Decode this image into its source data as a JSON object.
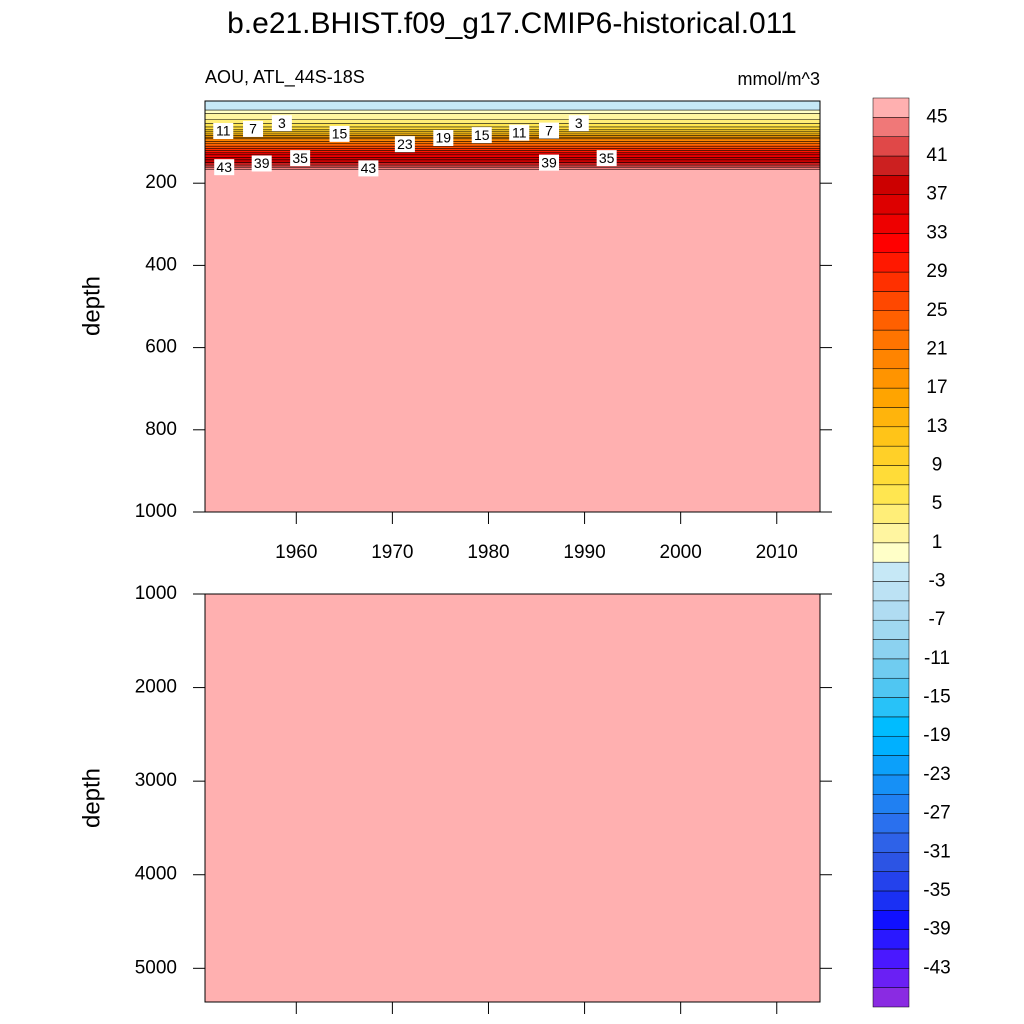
{
  "title": "b.e21.BHIST.f09_g17.CMIP6-historical.011",
  "chart_data": [
    {
      "type": "contour",
      "left_label": "AOU, ATL_44S-18S",
      "right_label": "mmol/m^3",
      "ylabel": "depth",
      "xlim": [
        1950.5,
        2014.5
      ],
      "xticks": [
        1960,
        1970,
        1980,
        1990,
        2000,
        2010
      ],
      "ylim": [
        0,
        1000
      ],
      "yticks": [
        200,
        400,
        600,
        800,
        1000
      ],
      "level_depths": [
        null,
        null,
        null,
        null,
        null,
        null,
        null,
        null,
        null,
        null,
        null,
        null,
        null,
        null,
        null,
        null,
        null,
        null,
        null,
        null,
        null,
        null,
        22,
        30,
        45,
        55,
        63,
        70,
        75,
        80,
        84,
        88,
        92,
        98,
        104,
        110,
        116,
        121,
        126,
        131,
        137,
        143,
        150,
        156,
        161,
        167
      ],
      "contour_labels": [
        {
          "text": 11,
          "year": 1952.4,
          "depth": 73
        },
        {
          "text": 7,
          "year": 1955.5,
          "depth": 68
        },
        {
          "text": 3,
          "year": 1958.5,
          "depth": 54
        },
        {
          "text": 15,
          "year": 1964.5,
          "depth": 80
        },
        {
          "text": 23,
          "year": 1971.3,
          "depth": 105
        },
        {
          "text": 19,
          "year": 1975.3,
          "depth": 90
        },
        {
          "text": 15,
          "year": 1979.3,
          "depth": 83
        },
        {
          "text": 11,
          "year": 1983.2,
          "depth": 77
        },
        {
          "text": 7,
          "year": 1986.3,
          "depth": 72
        },
        {
          "text": 3,
          "year": 1989.4,
          "depth": 54
        },
        {
          "text": 43,
          "year": 1952.5,
          "depth": 161
        },
        {
          "text": 39,
          "year": 1956.4,
          "depth": 152
        },
        {
          "text": 35,
          "year": 1960.4,
          "depth": 139
        },
        {
          "text": 43,
          "year": 1967.5,
          "depth": 164
        },
        {
          "text": 39,
          "year": 1986.3,
          "depth": 150
        },
        {
          "text": 35,
          "year": 1992.3,
          "depth": 139
        }
      ]
    },
    {
      "type": "contour",
      "ylabel": "depth",
      "ylim": [
        1000,
        5360
      ],
      "yticks": [
        1000,
        2000,
        3000,
        4000,
        5000
      ],
      "fill_color": "#ffb0b0"
    }
  ],
  "colorbar": {
    "levels": [
      -45,
      -43,
      -41,
      -39,
      -37,
      -35,
      -33,
      -31,
      -29,
      -27,
      -25,
      -23,
      -21,
      -19,
      -17,
      -15,
      -13,
      -11,
      -9,
      -7,
      -5,
      -3,
      -1,
      1,
      3,
      5,
      7,
      9,
      11,
      13,
      15,
      17,
      19,
      21,
      23,
      25,
      27,
      29,
      31,
      33,
      35,
      37,
      39,
      41,
      43,
      45
    ],
    "colors": [
      "#8a2be2",
      "#6a20f4",
      "#4a18ff",
      "#2a18ff",
      "#1010ff",
      "#1a30f4",
      "#2442ec",
      "#2c54e4",
      "#2e62e8",
      "#2a70ee",
      "#2080f2",
      "#1690f6",
      "#0ca0fa",
      "#00b0ff",
      "#00bcff",
      "#28c2f8",
      "#50c6f2",
      "#70ccf0",
      "#8cd2f0",
      "#a0d8f0",
      "#b0dcf2",
      "#bce2f4",
      "#c6e8f6",
      "#ffffc8",
      "#fff5a0",
      "#ffee78",
      "#ffe650",
      "#ffdc38",
      "#ffd028",
      "#ffc418",
      "#ffb40c",
      "#ffa400",
      "#ff9400",
      "#ff8400",
      "#ff7400",
      "#ff6000",
      "#ff4800",
      "#ff3000",
      "#ff1800",
      "#ff0000",
      "#ee0000",
      "#dd0000",
      "#cc0000",
      "#cc2020",
      "#e04848",
      "#f07878",
      "#ffb0b0"
    ]
  }
}
